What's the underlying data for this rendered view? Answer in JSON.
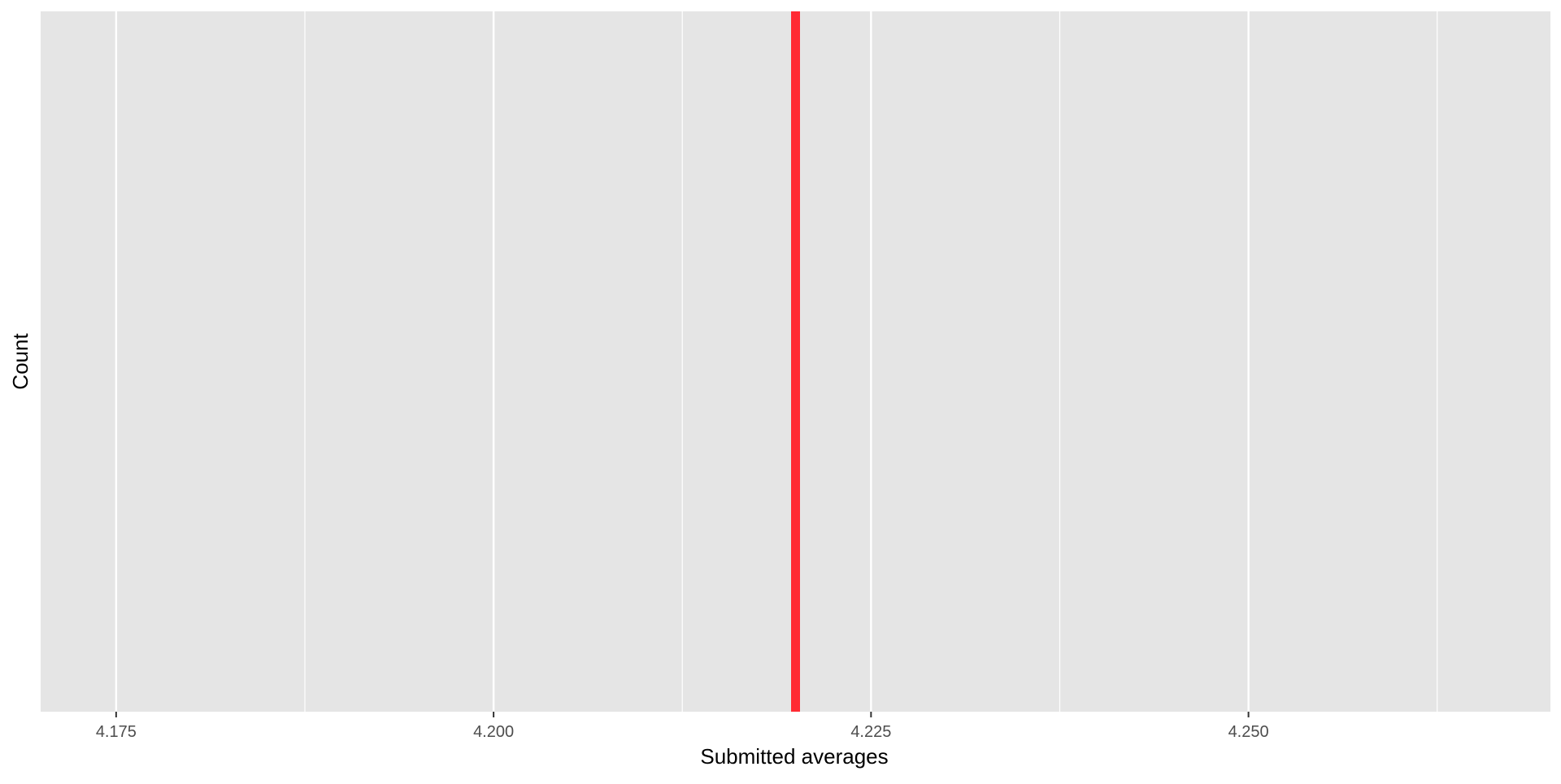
{
  "chart_data": {
    "type": "histogram",
    "title": "",
    "xlabel": "Submitted averages",
    "ylabel": "Count",
    "xlim": [
      4.17,
      4.27
    ],
    "x_ticks": [
      {
        "value": 4.175,
        "label": "4.175"
      },
      {
        "value": 4.2,
        "label": "4.200"
      },
      {
        "value": 4.225,
        "label": "4.225"
      },
      {
        "value": 4.25,
        "label": "4.250"
      }
    ],
    "x_minor_ticks": [
      4.1875,
      4.2125,
      4.2375,
      4.2625
    ],
    "y_ticks": [],
    "grid": true,
    "legend": "none",
    "bars": [],
    "reference_line": {
      "orientation": "vertical",
      "x": 4.22,
      "color": "#ff2a33"
    },
    "colors": {
      "panel_background": "#e5e5e5",
      "grid": "#ffffff",
      "tick_label": "#4d4d4d",
      "axis_title": "#000000"
    }
  }
}
